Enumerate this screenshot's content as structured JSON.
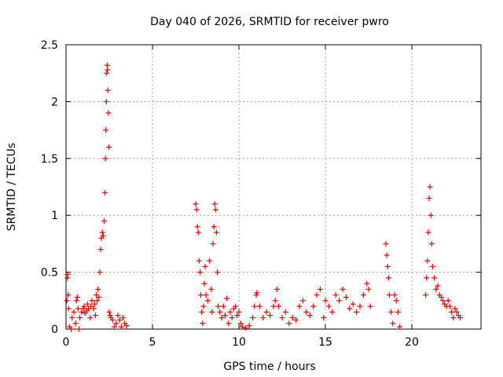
{
  "chart_data": {
    "type": "scatter",
    "title": "Day 040 of 2026, SRMTID for receiver pwro",
    "xlabel": "GPS time / hours",
    "ylabel": "SRMTID / TECUs",
    "xlim": [
      0,
      24
    ],
    "ylim": [
      0,
      2.5
    ],
    "xticks": [
      0,
      5,
      10,
      15,
      20
    ],
    "yticks": [
      0,
      0.5,
      1,
      1.5,
      2,
      2.5
    ],
    "xtick_labels": [
      "0",
      "5",
      "10",
      "15",
      "20"
    ],
    "ytick_labels": [
      "0",
      "0.5",
      "1",
      "1.5",
      "2",
      "2.5"
    ],
    "grid": true,
    "marker": "+",
    "color": "#e00000",
    "series": [
      {
        "name": "SRMTID",
        "points": [
          [
            0.05,
            0.25
          ],
          [
            0.08,
            0.45
          ],
          [
            0.1,
            0.48
          ],
          [
            0.12,
            0.3
          ],
          [
            0.15,
            0.18
          ],
          [
            0.2,
            0.02
          ],
          [
            0.3,
            0.0
          ],
          [
            0.35,
            0.1
          ],
          [
            0.45,
            0.15
          ],
          [
            0.55,
            0.05
          ],
          [
            0.6,
            0.25
          ],
          [
            0.65,
            0.28
          ],
          [
            0.7,
            0.18
          ],
          [
            0.75,
            0.0
          ],
          [
            0.8,
            0.1
          ],
          [
            0.9,
            0.15
          ],
          [
            1.0,
            0.18
          ],
          [
            1.05,
            0.2
          ],
          [
            1.1,
            0.14
          ],
          [
            1.2,
            0.16
          ],
          [
            1.25,
            0.22
          ],
          [
            1.3,
            0.18
          ],
          [
            1.4,
            0.1
          ],
          [
            1.45,
            0.2
          ],
          [
            1.5,
            0.25
          ],
          [
            1.6,
            0.18
          ],
          [
            1.65,
            0.22
          ],
          [
            1.7,
            0.12
          ],
          [
            1.75,
            0.3
          ],
          [
            1.8,
            0.25
          ],
          [
            1.85,
            0.35
          ],
          [
            1.9,
            0.28
          ],
          [
            1.95,
            0.5
          ],
          [
            2.0,
            0.7
          ],
          [
            2.05,
            0.8
          ],
          [
            2.1,
            0.85
          ],
          [
            2.15,
            0.82
          ],
          [
            2.2,
            0.95
          ],
          [
            2.25,
            1.2
          ],
          [
            2.28,
            1.5
          ],
          [
            2.3,
            1.75
          ],
          [
            2.33,
            2.0
          ],
          [
            2.35,
            2.25
          ],
          [
            2.38,
            2.32
          ],
          [
            2.4,
            2.28
          ],
          [
            2.42,
            2.1
          ],
          [
            2.45,
            1.9
          ],
          [
            2.48,
            1.6
          ],
          [
            2.5,
            0.15
          ],
          [
            2.55,
            0.12
          ],
          [
            2.6,
            0.1
          ],
          [
            2.7,
            0.08
          ],
          [
            2.8,
            0.02
          ],
          [
            2.9,
            0.05
          ],
          [
            3.0,
            0.12
          ],
          [
            3.1,
            0.08
          ],
          [
            3.2,
            0.02
          ],
          [
            3.3,
            0.1
          ],
          [
            3.4,
            0.05
          ],
          [
            3.5,
            0.03
          ],
          [
            7.5,
            1.1
          ],
          [
            7.55,
            1.05
          ],
          [
            7.6,
            0.9
          ],
          [
            7.65,
            0.85
          ],
          [
            7.7,
            0.6
          ],
          [
            7.75,
            0.5
          ],
          [
            7.8,
            0.3
          ],
          [
            7.85,
            0.15
          ],
          [
            7.9,
            0.05
          ],
          [
            7.95,
            0.2
          ],
          [
            8.0,
            0.4
          ],
          [
            8.05,
            0.55
          ],
          [
            8.1,
            0.3
          ],
          [
            8.2,
            0.25
          ],
          [
            8.3,
            0.6
          ],
          [
            8.4,
            0.35
          ],
          [
            8.45,
            0.15
          ],
          [
            8.5,
            0.75
          ],
          [
            8.55,
            0.9
          ],
          [
            8.6,
            1.1
          ],
          [
            8.65,
            1.05
          ],
          [
            8.7,
            0.85
          ],
          [
            8.75,
            0.5
          ],
          [
            8.8,
            0.2
          ],
          [
            8.9,
            0.15
          ],
          [
            9.0,
            0.1
          ],
          [
            9.1,
            0.2
          ],
          [
            9.2,
            0.12
          ],
          [
            9.3,
            0.27
          ],
          [
            9.4,
            0.05
          ],
          [
            9.5,
            0.15
          ],
          [
            9.6,
            0.1
          ],
          [
            9.7,
            0.18
          ],
          [
            9.8,
            0.2
          ],
          [
            9.9,
            0.12
          ],
          [
            10.0,
            0.15
          ],
          [
            10.1,
            0.05
          ],
          [
            10.2,
            0.02
          ],
          [
            10.4,
            0.01
          ],
          [
            10.6,
            0.03
          ],
          [
            10.8,
            0.1
          ],
          [
            10.9,
            0.2
          ],
          [
            11.0,
            0.3
          ],
          [
            11.05,
            0.32
          ],
          [
            11.2,
            0.2
          ],
          [
            11.4,
            0.1
          ],
          [
            11.6,
            0.15
          ],
          [
            11.8,
            0.12
          ],
          [
            12.0,
            0.2
          ],
          [
            12.1,
            0.25
          ],
          [
            12.2,
            0.35
          ],
          [
            12.3,
            0.2
          ],
          [
            12.5,
            0.1
          ],
          [
            12.7,
            0.15
          ],
          [
            12.9,
            0.05
          ],
          [
            13.1,
            0.1
          ],
          [
            13.3,
            0.08
          ],
          [
            13.5,
            0.2
          ],
          [
            13.7,
            0.25
          ],
          [
            13.9,
            0.15
          ],
          [
            14.1,
            0.12
          ],
          [
            14.3,
            0.2
          ],
          [
            14.5,
            0.3
          ],
          [
            14.7,
            0.35
          ],
          [
            14.9,
            0.1
          ],
          [
            15.0,
            0.25
          ],
          [
            15.2,
            0.2
          ],
          [
            15.4,
            0.15
          ],
          [
            15.6,
            0.3
          ],
          [
            15.8,
            0.25
          ],
          [
            16.0,
            0.35
          ],
          [
            16.2,
            0.28
          ],
          [
            16.4,
            0.18
          ],
          [
            16.6,
            0.22
          ],
          [
            16.8,
            0.15
          ],
          [
            17.0,
            0.2
          ],
          [
            17.2,
            0.3
          ],
          [
            17.4,
            0.4
          ],
          [
            17.5,
            0.35
          ],
          [
            17.6,
            0.2
          ],
          [
            18.5,
            0.75
          ],
          [
            18.55,
            0.65
          ],
          [
            18.6,
            0.55
          ],
          [
            18.65,
            0.45
          ],
          [
            18.7,
            0.3
          ],
          [
            18.8,
            0.15
          ],
          [
            18.9,
            0.05
          ],
          [
            19.0,
            0.3
          ],
          [
            19.1,
            0.25
          ],
          [
            19.2,
            0.15
          ],
          [
            19.3,
            0.02
          ],
          [
            20.8,
            0.3
          ],
          [
            20.85,
            0.45
          ],
          [
            20.9,
            0.6
          ],
          [
            20.95,
            0.85
          ],
          [
            21.0,
            1.15
          ],
          [
            21.05,
            1.25
          ],
          [
            21.1,
            1.0
          ],
          [
            21.15,
            0.75
          ],
          [
            21.2,
            0.55
          ],
          [
            21.3,
            0.45
          ],
          [
            21.4,
            0.35
          ],
          [
            21.5,
            0.38
          ],
          [
            21.6,
            0.3
          ],
          [
            21.7,
            0.28
          ],
          [
            21.8,
            0.25
          ],
          [
            21.9,
            0.22
          ],
          [
            22.0,
            0.2
          ],
          [
            22.1,
            0.25
          ],
          [
            22.2,
            0.2
          ],
          [
            22.3,
            0.15
          ],
          [
            22.4,
            0.1
          ],
          [
            22.5,
            0.18
          ],
          [
            22.6,
            0.15
          ],
          [
            22.7,
            0.12
          ],
          [
            22.8,
            0.1
          ]
        ]
      }
    ]
  }
}
